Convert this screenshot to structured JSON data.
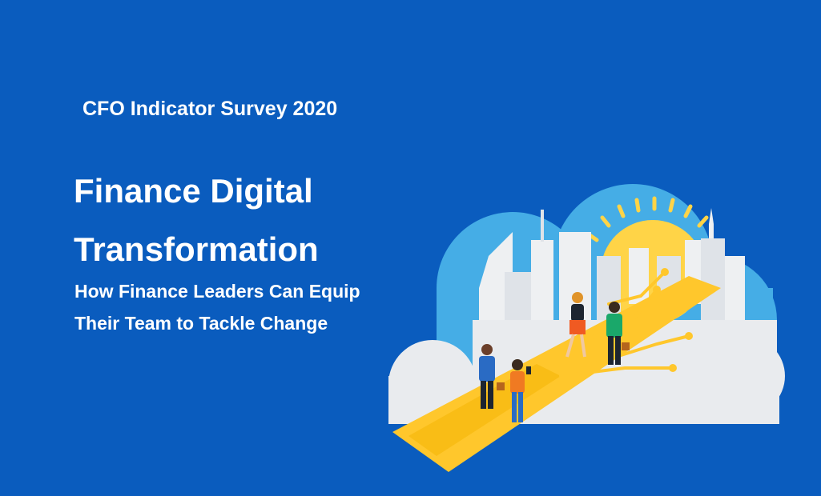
{
  "eyebrow": "CFO Indicator Survey 2020",
  "title_lines": [
    "Finance Digital",
    "Transformation"
  ],
  "subtitle_lines": [
    "How Finance Leaders Can Equip",
    "Their Team to Tackle Change"
  ]
}
